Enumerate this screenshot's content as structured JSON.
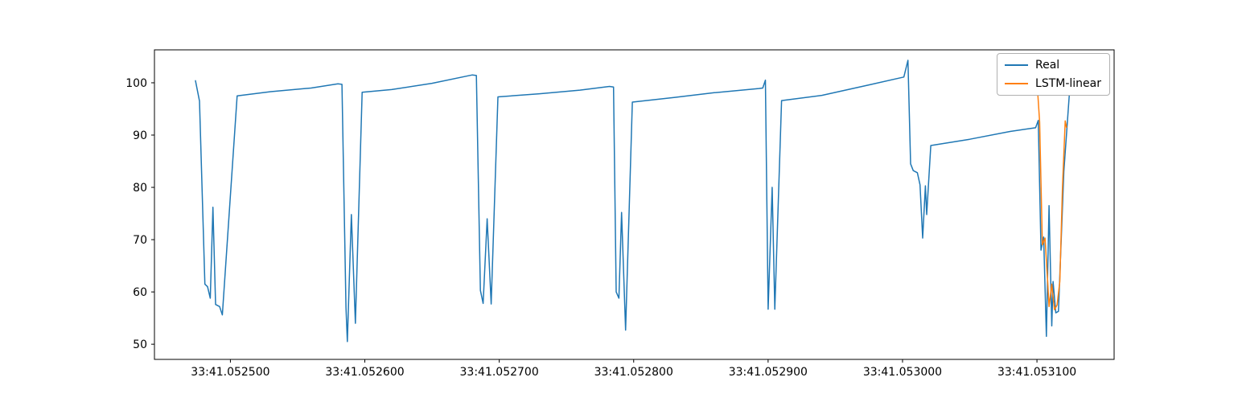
{
  "chart_data": {
    "type": "line",
    "title": "",
    "xlabel": "",
    "ylabel": "",
    "grid": false,
    "xlim": [
      52443.5,
      53157.4
    ],
    "ylim": [
      47.1,
      106.3
    ],
    "x_ticks": {
      "values": [
        52500,
        52600,
        52700,
        52800,
        52900,
        53000,
        53100
      ],
      "labels": [
        "33:41.052500",
        "33:41.052600",
        "33:41.052700",
        "33:41.052800",
        "33:41.052900",
        "33:41.053000",
        "33:41.053100"
      ]
    },
    "y_ticks": [
      50,
      60,
      70,
      80,
      90,
      100
    ],
    "legend": {
      "position": "upper right",
      "entries": [
        "Real",
        "LSTM-linear"
      ]
    },
    "series": [
      {
        "name": "Real",
        "color": "#1f77b4",
        "points": [
          [
            52474,
            100.4
          ],
          [
            52477,
            96.5
          ],
          [
            52481,
            61.5
          ],
          [
            52483,
            61.0
          ],
          [
            52485,
            58.8
          ],
          [
            52487,
            76.2
          ],
          [
            52489,
            57.6
          ],
          [
            52492,
            57.2
          ],
          [
            52494,
            55.6
          ],
          [
            52505,
            97.5
          ],
          [
            52530,
            98.3
          ],
          [
            52560,
            99.0
          ],
          [
            52580,
            99.8
          ],
          [
            52583,
            99.7
          ],
          [
            52586,
            57.0
          ],
          [
            52587,
            50.5
          ],
          [
            52590,
            74.8
          ],
          [
            52593,
            54.0
          ],
          [
            52598,
            98.2
          ],
          [
            52620,
            98.7
          ],
          [
            52650,
            99.9
          ],
          [
            52680,
            101.5
          ],
          [
            52683,
            101.4
          ],
          [
            52686,
            60.3
          ],
          [
            52688,
            57.8
          ],
          [
            52691,
            74.0
          ],
          [
            52694,
            57.7
          ],
          [
            52699,
            97.3
          ],
          [
            52730,
            97.9
          ],
          [
            52760,
            98.6
          ],
          [
            52782,
            99.3
          ],
          [
            52785,
            99.2
          ],
          [
            52787,
            60.0
          ],
          [
            52789,
            58.8
          ],
          [
            52791,
            75.2
          ],
          [
            52794,
            52.7
          ],
          [
            52799,
            96.3
          ],
          [
            52830,
            97.2
          ],
          [
            52860,
            98.1
          ],
          [
            52893,
            98.9
          ],
          [
            52896,
            99.0
          ],
          [
            52898,
            100.5
          ],
          [
            52900,
            56.7
          ],
          [
            52903,
            80.0
          ],
          [
            52905,
            56.7
          ],
          [
            52910,
            96.6
          ],
          [
            52940,
            97.6
          ],
          [
            52975,
            99.6
          ],
          [
            53001,
            101.1
          ],
          [
            53004,
            104.3
          ],
          [
            53006,
            84.5
          ],
          [
            53008,
            83.2
          ],
          [
            53011,
            82.8
          ],
          [
            53013,
            80.5
          ],
          [
            53015,
            70.3
          ],
          [
            53017,
            80.3
          ],
          [
            53018,
            74.8
          ],
          [
            53021,
            88.0
          ],
          [
            53050,
            89.2
          ],
          [
            53080,
            90.7
          ],
          [
            53099,
            91.4
          ],
          [
            53101,
            92.8
          ],
          [
            53103,
            68.0
          ],
          [
            53105,
            70.5
          ],
          [
            53107,
            51.5
          ],
          [
            53109,
            76.5
          ],
          [
            53111,
            53.5
          ],
          [
            53112,
            62.0
          ],
          [
            53114,
            56.0
          ],
          [
            53116,
            56.3
          ],
          [
            53120,
            83.0
          ],
          [
            53124,
            97.5
          ]
        ]
      },
      {
        "name": "LSTM-linear",
        "color": "#ff7f0e",
        "points": [
          [
            53100,
            100.3
          ],
          [
            53102,
            92.5
          ],
          [
            53104,
            69.0
          ],
          [
            53106,
            70.3
          ],
          [
            53108,
            62.0
          ],
          [
            53109,
            57.2
          ],
          [
            53111,
            61.5
          ],
          [
            53113,
            56.6
          ],
          [
            53115,
            57.5
          ],
          [
            53117,
            62.0
          ],
          [
            53119,
            80.0
          ],
          [
            53121,
            92.7
          ],
          [
            53122,
            91.5
          ]
        ]
      }
    ]
  }
}
